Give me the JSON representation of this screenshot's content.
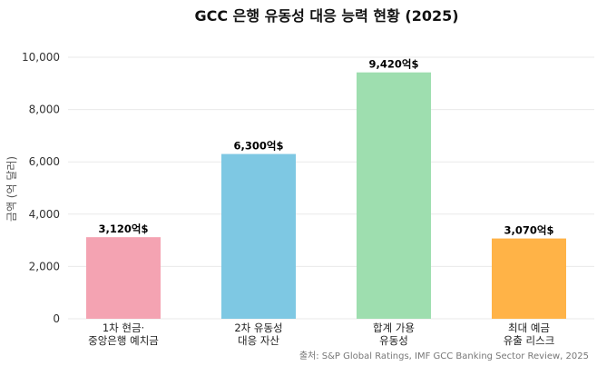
{
  "chart_data": {
    "type": "bar",
    "title": "GCC 은행 유동성 대응 능력 현황 (2025)",
    "ylabel": "금액 (억 달러)",
    "xlabel": "",
    "ylim": [
      0,
      10000
    ],
    "yticks": [
      "0",
      "2,000",
      "4,000",
      "6,000",
      "8,000",
      "10,000"
    ],
    "ytick_values": [
      0,
      2000,
      4000,
      6000,
      8000,
      10000
    ],
    "grid": true,
    "categories": [
      [
        "1차 현금·",
        "중앙은행 예치금"
      ],
      [
        "2차 유동성",
        "대응 자산"
      ],
      [
        "합계 가용",
        "유동성"
      ],
      [
        "최대 예금",
        "유출 리스크"
      ]
    ],
    "values": [
      3120,
      6300,
      9420,
      3070
    ],
    "data_labels": [
      "3,120억$",
      "6,300억$",
      "9,420억$",
      "3,070억$"
    ],
    "colors": [
      "#F4A3B2",
      "#7EC8E3",
      "#9EDEAF",
      "#FFB347"
    ],
    "source": "출처: S&P Global Ratings, IMF GCC Banking Sector Review, 2025"
  }
}
